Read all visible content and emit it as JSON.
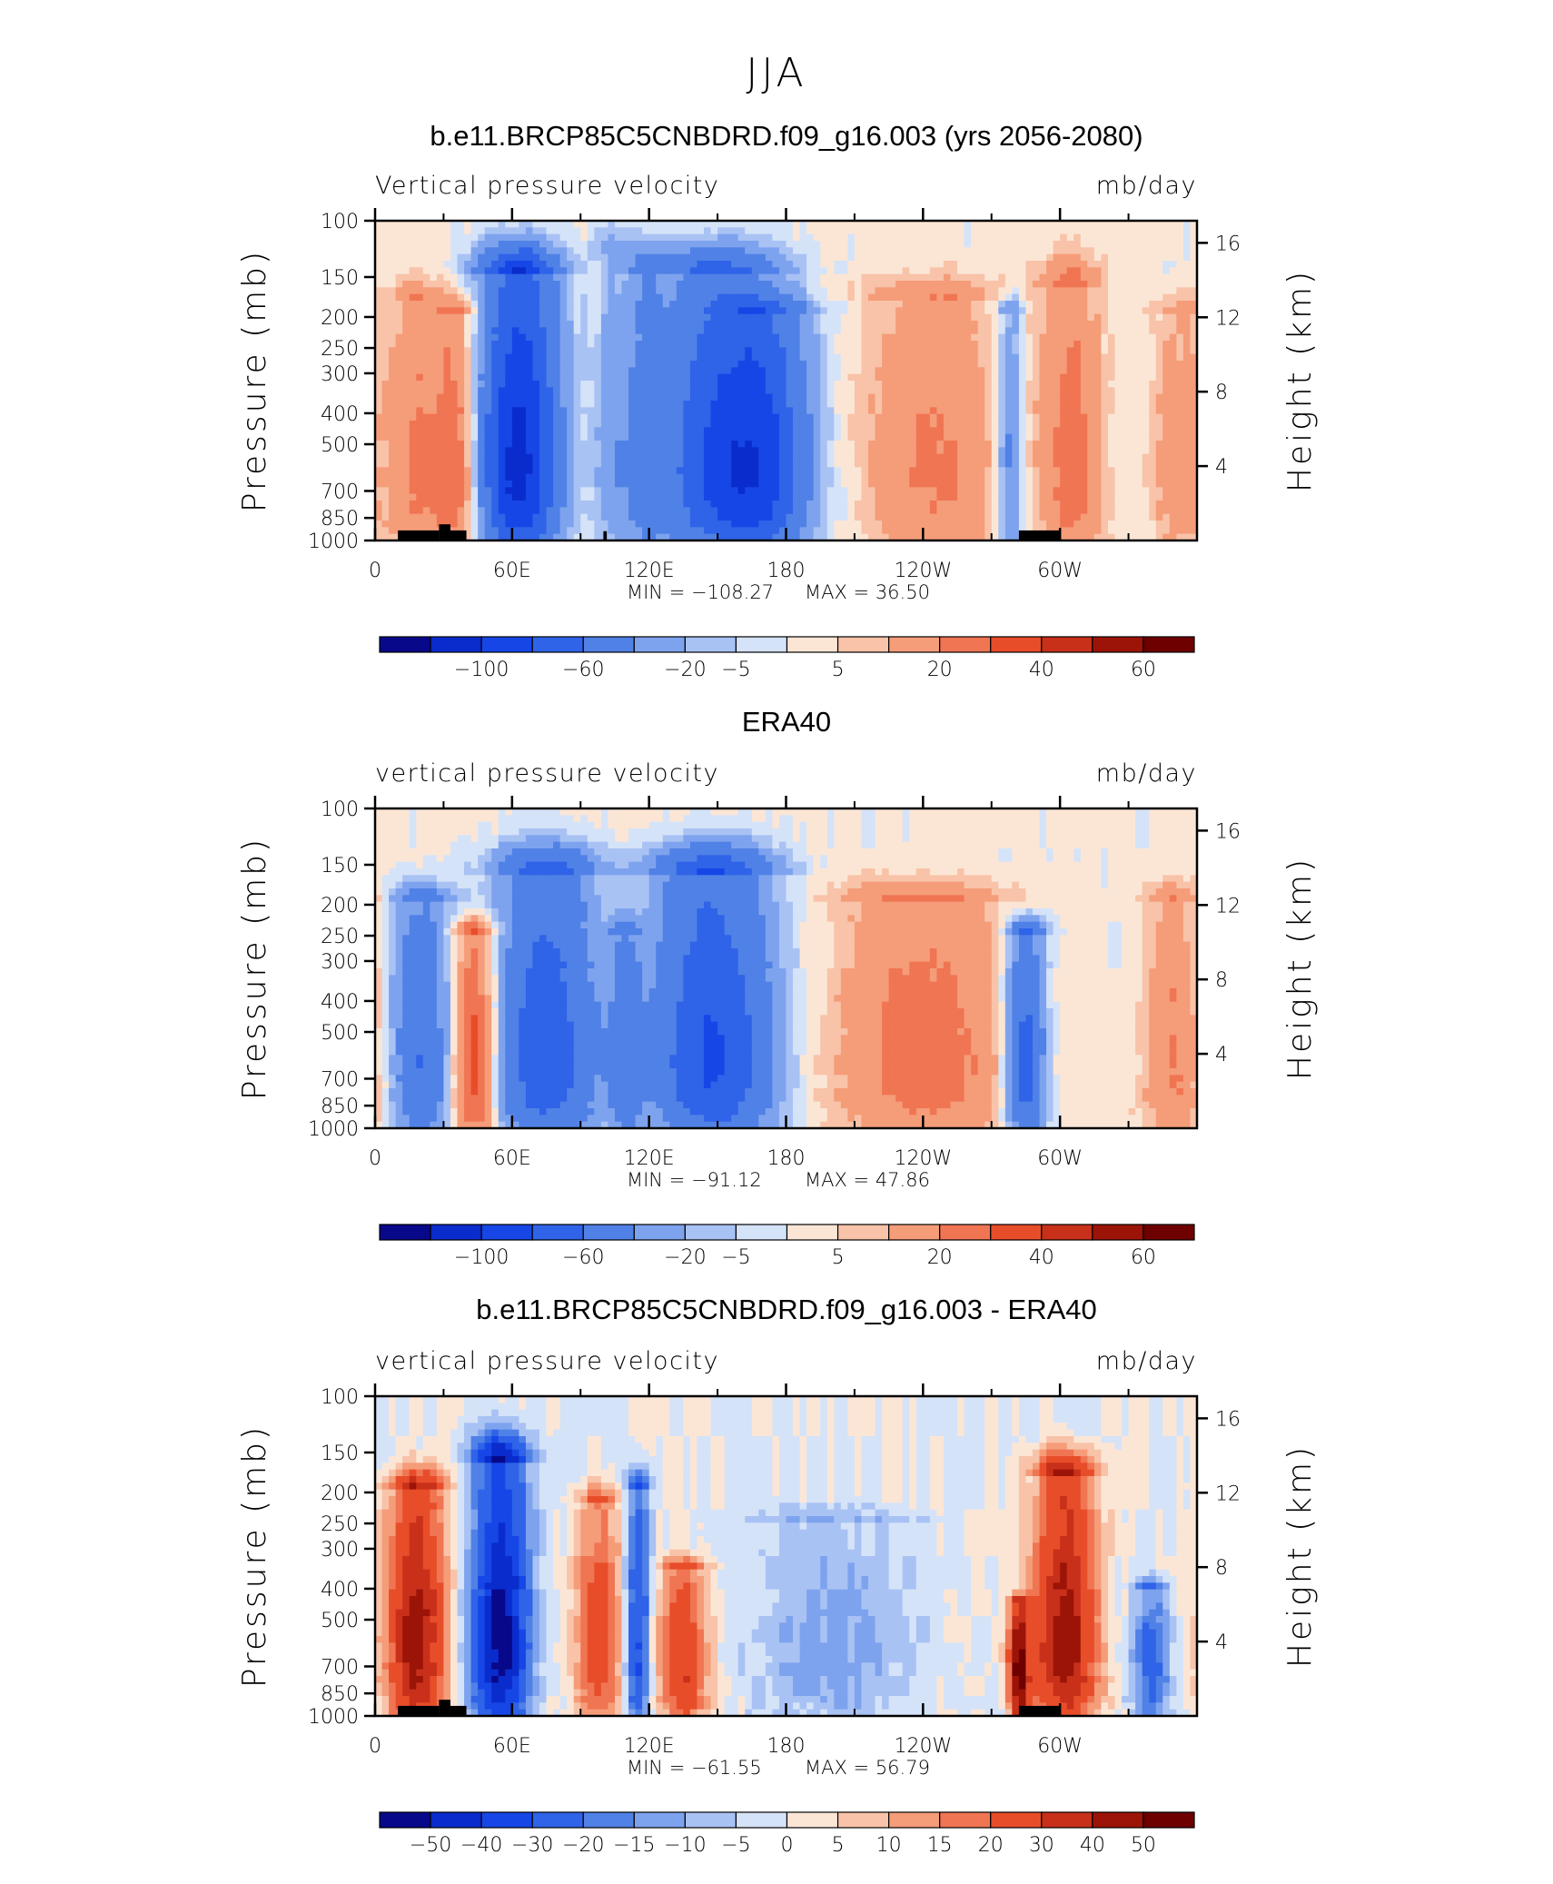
{
  "figure_title": "JJA",
  "colors": {
    "cmap_ref": [
      "#08088a",
      "#0a2ccc",
      "#1646e6",
      "#2f63e8",
      "#5081e6",
      "#7ea3ee",
      "#a9c2f4",
      "#d5e3f8",
      "#fbe6d6",
      "#f8c3a8",
      "#f59c79",
      "#f07553",
      "#e84d29",
      "#c8301a",
      "#9c1408",
      "#6e0000"
    ],
    "cmap_diff": [
      "#08088a",
      "#0a2ccc",
      "#1646e6",
      "#2f63e8",
      "#5081e6",
      "#7ea3ee",
      "#a9c2f4",
      "#d5e3f8",
      "#fbe6d6",
      "#f8c3a8",
      "#f59c79",
      "#f07553",
      "#e84d29",
      "#c8301a",
      "#9c1408",
      "#6e0000"
    ],
    "topography": "#000000"
  },
  "chart_data": [
    {
      "type": "heatmap",
      "title": "b.e11.BRCP85C5CNBDRD.f09_g16.003 (yrs 2056-2080)",
      "variable": "Vertical pressure velocity",
      "units": "mb/day",
      "ylabel": "Pressure (mb)",
      "ylabel_right": "Height (km)",
      "x_ticks": [
        "0",
        "60E",
        "120E",
        "180",
        "120W",
        "60W"
      ],
      "y_ticks": [
        "100",
        "150",
        "200",
        "250",
        "300",
        "400",
        "500",
        "700",
        "850",
        "1000"
      ],
      "y_ticks_right": [
        "16",
        "12",
        "8",
        "4"
      ],
      "min_label": "MIN = −108.27",
      "max_label": "MAX = 36.50",
      "min": -108.27,
      "max": 36.5,
      "levels": [
        -100,
        -80,
        -60,
        -40,
        -20,
        -10,
        -5,
        0,
        5,
        10,
        20,
        30,
        40,
        50,
        60
      ],
      "colorbar_labels": [
        "−100",
        "−60",
        "−20",
        "−5",
        "5",
        "20",
        "40",
        "60"
      ],
      "features": [
        {
          "lon": 18,
          "p_top": 180,
          "value": 20,
          "spread_lon": 8
        },
        {
          "lon": 36,
          "p_top": 200,
          "value": 30,
          "spread_lon": 7
        },
        {
          "lon": 63,
          "p_top": 150,
          "value": -90,
          "spread_lon": 12
        },
        {
          "lon": 104,
          "p_top": 130,
          "value": -15,
          "spread_lon": 6
        },
        {
          "lon": 118,
          "p_top": 150,
          "value": -20,
          "spread_lon": 5
        },
        {
          "lon": 150,
          "p_top": 150,
          "value": -55,
          "spread_lon": 20
        },
        {
          "lon": 170,
          "p_top": 200,
          "value": -45,
          "spread_lon": 15
        },
        {
          "lon": 245,
          "p_top": 180,
          "value": 20,
          "spread_lon": 22
        },
        {
          "lon": 278,
          "p_top": 200,
          "value": -30,
          "spread_lon": 4
        },
        {
          "lon": 305,
          "p_top": 160,
          "value": 25,
          "spread_lon": 9
        },
        {
          "lon": 352,
          "p_top": 200,
          "value": 15,
          "spread_lon": 8
        }
      ]
    },
    {
      "type": "heatmap",
      "title": "ERA40",
      "variable": "vertical pressure velocity",
      "units": "mb/day",
      "ylabel": "Pressure (mb)",
      "ylabel_right": "Height (km)",
      "x_ticks": [
        "0",
        "60E",
        "120E",
        "180",
        "120W",
        "60W"
      ],
      "y_ticks": [
        "100",
        "150",
        "200",
        "250",
        "300",
        "400",
        "500",
        "700",
        "850",
        "1000"
      ],
      "y_ticks_right": [
        "16",
        "12",
        "8",
        "4"
      ],
      "min_label": "MIN = −91.12",
      "max_label": "MAX = 47.86",
      "min": -91.12,
      "max": 47.86,
      "levels": [
        -100,
        -80,
        -60,
        -40,
        -20,
        -10,
        -5,
        0,
        5,
        10,
        20,
        30,
        40,
        50,
        60
      ],
      "colorbar_labels": [
        "−100",
        "−60",
        "−20",
        "−5",
        "5",
        "20",
        "40",
        "60"
      ],
      "features": [
        {
          "lon": 20,
          "p_top": 200,
          "value": -40,
          "spread_lon": 9
        },
        {
          "lon": 44,
          "p_top": 250,
          "value": 40,
          "spread_lon": 7
        },
        {
          "lon": 75,
          "p_top": 160,
          "value": -55,
          "spread_lon": 16
        },
        {
          "lon": 110,
          "p_top": 250,
          "value": -25,
          "spread_lon": 5
        },
        {
          "lon": 148,
          "p_top": 160,
          "value": -65,
          "spread_lon": 18
        },
        {
          "lon": 240,
          "p_top": 200,
          "value": 25,
          "spread_lon": 26
        },
        {
          "lon": 285,
          "p_top": 250,
          "value": -55,
          "spread_lon": 6
        },
        {
          "lon": 350,
          "p_top": 200,
          "value": 20,
          "spread_lon": 9
        }
      ]
    },
    {
      "type": "heatmap",
      "title": "b.e11.BRCP85C5CNBDRD.f09_g16.003 - ERA40",
      "variable": "vertical pressure velocity",
      "units": "mb/day",
      "ylabel": "Pressure (mb)",
      "ylabel_right": "Height (km)",
      "x_ticks": [
        "0",
        "60E",
        "120E",
        "180",
        "120W",
        "60W"
      ],
      "y_ticks": [
        "100",
        "150",
        "200",
        "250",
        "300",
        "400",
        "500",
        "700",
        "850",
        "1000"
      ],
      "y_ticks_right": [
        "16",
        "12",
        "8",
        "4"
      ],
      "min_label": "MIN = −61.55",
      "max_label": "MAX = 56.79",
      "min": -61.55,
      "max": 56.79,
      "levels": [
        -50,
        -40,
        -30,
        -20,
        -15,
        -10,
        -5,
        0,
        5,
        10,
        15,
        20,
        30,
        40,
        50
      ],
      "colorbar_labels": [
        "−50",
        "−40",
        "−30",
        "−20",
        "−15",
        "−10",
        "−5",
        "0",
        "5",
        "10",
        "15",
        "20",
        "30",
        "40",
        "50"
      ],
      "features": [
        {
          "lon": 18,
          "p_top": 200,
          "value": 45,
          "spread_lon": 9
        },
        {
          "lon": 55,
          "p_top": 160,
          "value": -55,
          "spread_lon": 9
        },
        {
          "lon": 98,
          "p_top": 220,
          "value": 25,
          "spread_lon": 8
        },
        {
          "lon": 115,
          "p_top": 200,
          "value": -35,
          "spread_lon": 4
        },
        {
          "lon": 135,
          "p_top": 350,
          "value": 30,
          "spread_lon": 8
        },
        {
          "lon": 200,
          "p_top": 250,
          "value": -12,
          "spread_lon": 25
        },
        {
          "lon": 282,
          "p_top": 450,
          "value": 50,
          "spread_lon": 3
        },
        {
          "lon": 302,
          "p_top": 180,
          "value": 45,
          "spread_lon": 10
        },
        {
          "lon": 340,
          "p_top": 400,
          "value": -25,
          "spread_lon": 6
        }
      ]
    }
  ]
}
